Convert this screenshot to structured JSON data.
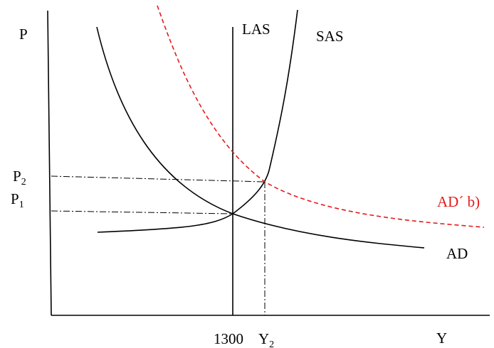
{
  "diagram": {
    "y_axis_label": "P",
    "x_axis_label": "Y",
    "price_levels": [
      {
        "main": "P",
        "sub": "2"
      },
      {
        "main": "P",
        "sub": "1"
      }
    ],
    "output_levels": [
      {
        "main": "1300",
        "sub": ""
      },
      {
        "main": "Y",
        "sub": "2"
      }
    ],
    "curves": {
      "las": "LAS",
      "sas": "SAS",
      "ad": "AD",
      "ad_shifted": "AD´ b)"
    },
    "colors": {
      "curve": "#000000",
      "shifted_curve": "#e41a1c",
      "axis": "#000000"
    }
  }
}
